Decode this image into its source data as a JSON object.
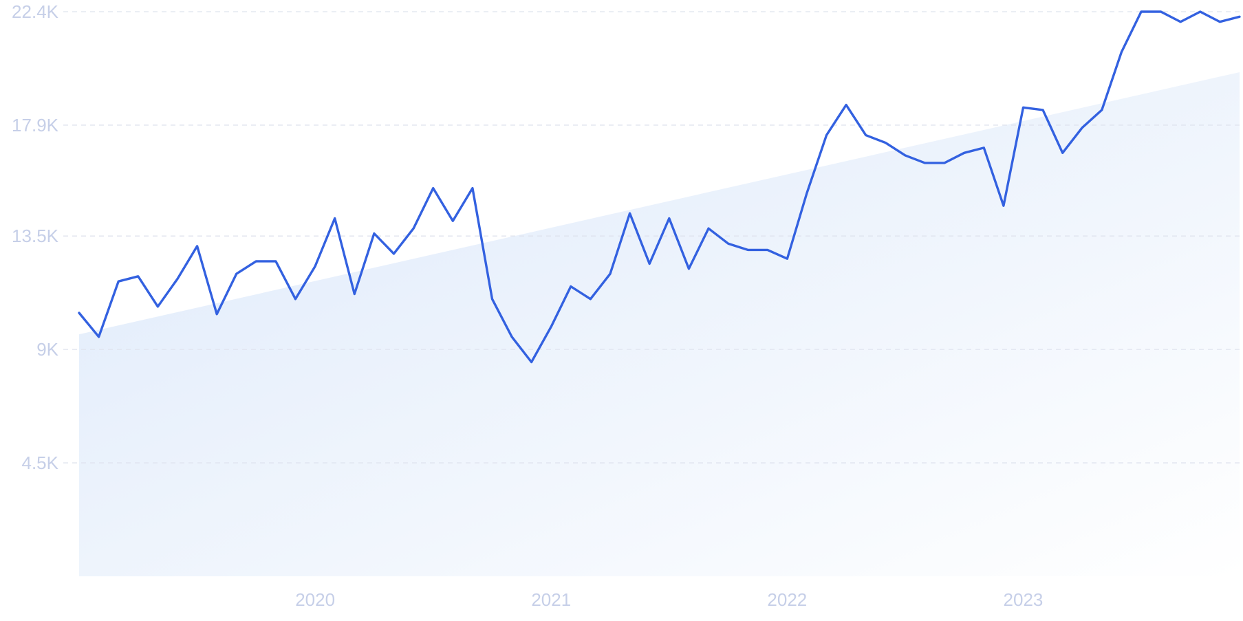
{
  "colors": {
    "line": "#3361e0",
    "grid": "#dfe3ee",
    "tick_text": "#c6cfe8",
    "trend_fill_start": "#dde9fa",
    "trend_fill_end": "#ffffff"
  },
  "chart_data": {
    "type": "line",
    "title": "",
    "xlabel": "",
    "ylabel": "",
    "grid": true,
    "legend": "none",
    "ylim": [
      0,
      22400
    ],
    "y_ticks": [
      {
        "value": 4500,
        "label": "4.5K"
      },
      {
        "value": 9000,
        "label": "9K"
      },
      {
        "value": 13500,
        "label": "13.5K"
      },
      {
        "value": 17900,
        "label": "17.9K"
      },
      {
        "value": 22400,
        "label": "22.4K"
      }
    ],
    "xlim": [
      "2019-01",
      "2023-12"
    ],
    "x_ticks": [
      {
        "value": "2020-01",
        "label": "2020"
      },
      {
        "value": "2021-01",
        "label": "2021"
      },
      {
        "value": "2022-01",
        "label": "2022"
      },
      {
        "value": "2023-01",
        "label": "2023"
      }
    ],
    "series": [
      {
        "type": "line",
        "x": [
          "2019-01",
          "2019-02",
          "2019-03",
          "2019-04",
          "2019-05",
          "2019-06",
          "2019-07",
          "2019-08",
          "2019-09",
          "2019-10",
          "2019-11",
          "2019-12",
          "2020-01",
          "2020-02",
          "2020-03",
          "2020-04",
          "2020-05",
          "2020-06",
          "2020-07",
          "2020-08",
          "2020-09",
          "2020-10",
          "2020-11",
          "2020-12",
          "2021-01",
          "2021-02",
          "2021-03",
          "2021-04",
          "2021-05",
          "2021-06",
          "2021-07",
          "2021-08",
          "2021-09",
          "2021-10",
          "2021-11",
          "2021-12",
          "2022-01",
          "2022-02",
          "2022-03",
          "2022-04",
          "2022-05",
          "2022-06",
          "2022-07",
          "2022-08",
          "2022-09",
          "2022-10",
          "2022-11",
          "2022-12",
          "2023-01",
          "2023-02",
          "2023-03",
          "2023-04",
          "2023-05",
          "2023-06",
          "2023-07",
          "2023-08",
          "2023-09",
          "2023-10",
          "2023-11",
          "2023-12"
        ],
        "values": [
          10450,
          9500,
          11700,
          11900,
          10700,
          11800,
          13100,
          10400,
          12000,
          12500,
          12500,
          11000,
          12300,
          14200,
          11200,
          13600,
          12800,
          13800,
          15400,
          14100,
          15400,
          11000,
          9500,
          8500,
          9900,
          11500,
          11000,
          12000,
          14400,
          12400,
          14200,
          12200,
          13800,
          13200,
          12950,
          12950,
          12600,
          15200,
          17500,
          18700,
          17500,
          17200,
          16700,
          16400,
          16400,
          16800,
          17000,
          14700,
          18600,
          18500,
          16800,
          17800,
          18500,
          20800,
          22400,
          22400,
          22000,
          22400,
          22000,
          22200
        ]
      },
      {
        "type": "area",
        "x": [
          "2019-01",
          "2023-12"
        ],
        "values": [
          9600,
          20000
        ]
      }
    ]
  }
}
